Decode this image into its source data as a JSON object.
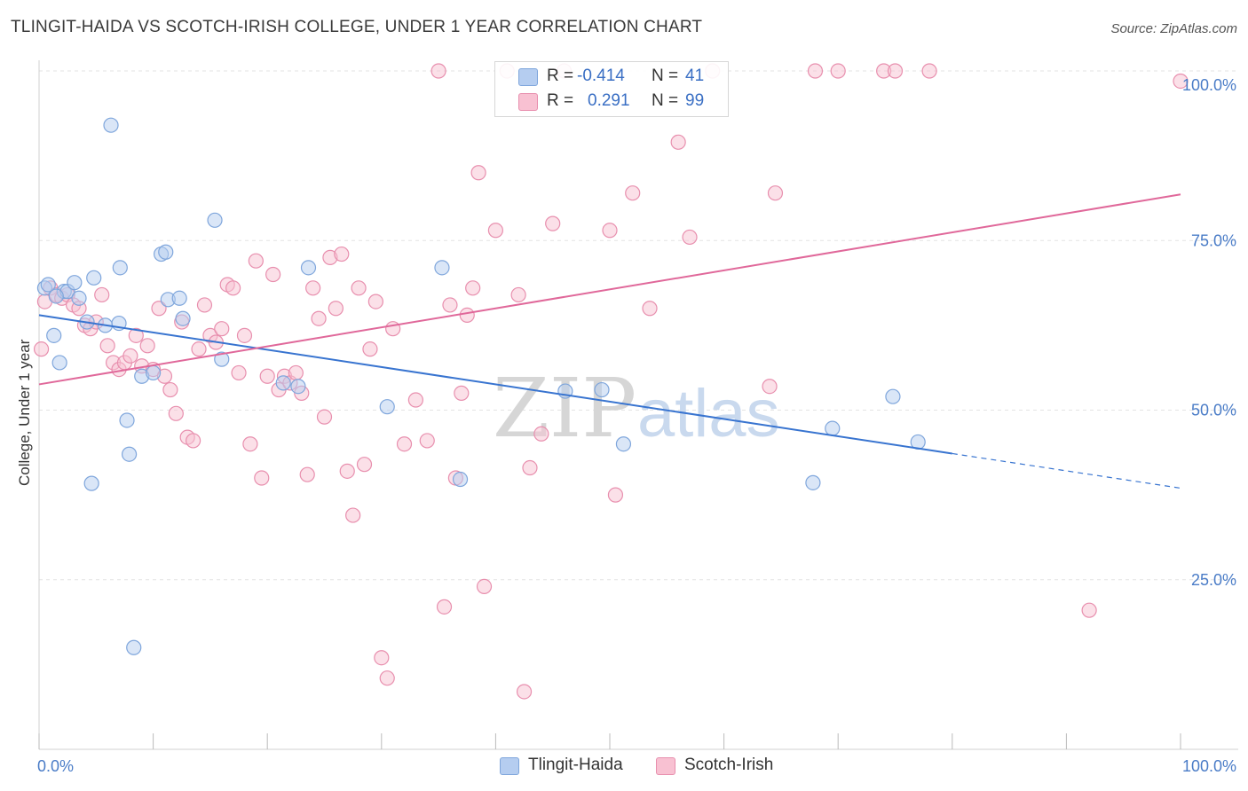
{
  "title": "TLINGIT-HAIDA VS SCOTCH-IRISH COLLEGE, UNDER 1 YEAR CORRELATION CHART",
  "source": "Source: ZipAtlas.com",
  "watermark": {
    "zip": "ZIP",
    "atlas": "atlas"
  },
  "legend": {
    "rows": [
      {
        "r_label": "R =",
        "r_value": "-0.414",
        "n_label": "N =",
        "n_value": "41"
      },
      {
        "r_label": "R =",
        "r_value": "0.291",
        "n_label": "N =",
        "n_value": "99"
      }
    ]
  },
  "bottom_legend": [
    "Tlingit-Haida",
    "Scotch-Irish"
  ],
  "colors": {
    "tlingit_fill": "#b5cdf0",
    "tlingit_stroke": "#7fa6dc",
    "tlingit_line": "#3874d0",
    "scotch_fill": "#f8c1d2",
    "scotch_stroke": "#e88fae",
    "scotch_line": "#e0689a",
    "tick_text": "#4a7cc7",
    "grid": "#e3e3e3"
  },
  "chart_data": {
    "type": "scatter",
    "title": "TLINGIT-HAIDA VS SCOTCH-IRISH COLLEGE, UNDER 1 YEAR CORRELATION CHART",
    "xlabel": "",
    "ylabel": "College, Under 1 year",
    "xlim": [
      0,
      100
    ],
    "ylim": [
      0,
      100
    ],
    "x_tick_labels": [
      "0.0%",
      "100.0%"
    ],
    "y_tick_labels": [
      "25.0%",
      "50.0%",
      "75.0%",
      "100.0%"
    ],
    "y_ticks": [
      25,
      50,
      75,
      100
    ],
    "grid": true,
    "legend_position": "bottom-center",
    "series": [
      {
        "name": "Tlingit-Haida",
        "R": -0.414,
        "N": 41,
        "trend": {
          "x0": 0,
          "y0": 64.0,
          "x1": 80,
          "y1": 43.6,
          "dash_to_x": 100,
          "dash_to_y": 38.5
        },
        "points": [
          [
            0.5,
            68.0
          ],
          [
            0.8,
            68.5
          ],
          [
            1.3,
            61.0
          ],
          [
            1.8,
            57.0
          ],
          [
            2.2,
            67.5
          ],
          [
            2.5,
            67.5
          ],
          [
            3.1,
            68.8
          ],
          [
            3.5,
            66.5
          ],
          [
            4.2,
            63.0
          ],
          [
            4.6,
            39.2
          ],
          [
            4.8,
            69.5
          ],
          [
            5.8,
            62.5
          ],
          [
            6.3,
            92.0
          ],
          [
            7.0,
            62.8
          ],
          [
            7.1,
            71.0
          ],
          [
            7.7,
            48.5
          ],
          [
            7.9,
            43.5
          ],
          [
            8.3,
            15.0
          ],
          [
            9.0,
            55.0
          ],
          [
            10.0,
            55.5
          ],
          [
            10.7,
            73.0
          ],
          [
            11.1,
            73.3
          ],
          [
            11.3,
            66.3
          ],
          [
            12.3,
            66.5
          ],
          [
            12.6,
            63.5
          ],
          [
            15.4,
            78.0
          ],
          [
            16.0,
            57.5
          ],
          [
            21.4,
            54.0
          ],
          [
            22.7,
            53.5
          ],
          [
            23.6,
            71.0
          ],
          [
            30.5,
            50.5
          ],
          [
            35.3,
            71.0
          ],
          [
            36.9,
            39.8
          ],
          [
            46.1,
            52.8
          ],
          [
            49.3,
            53.0
          ],
          [
            51.2,
            45.0
          ],
          [
            67.8,
            39.3
          ],
          [
            69.5,
            47.3
          ],
          [
            74.8,
            52.0
          ],
          [
            77.0,
            45.3
          ],
          [
            1.5,
            66.8
          ]
        ]
      },
      {
        "name": "Scotch-Irish",
        "R": 0.291,
        "N": 99,
        "trend": {
          "x0": 0,
          "y0": 53.8,
          "x1": 100,
          "y1": 81.8
        },
        "points": [
          [
            0.2,
            59.0
          ],
          [
            0.5,
            66.0
          ],
          [
            1.0,
            68.0
          ],
          [
            1.5,
            67.0
          ],
          [
            2.0,
            66.5
          ],
          [
            2.5,
            67.0
          ],
          [
            3.0,
            65.5
          ],
          [
            3.5,
            65.0
          ],
          [
            4.0,
            62.5
          ],
          [
            4.5,
            62.0
          ],
          [
            5.0,
            63.0
          ],
          [
            5.5,
            67.0
          ],
          [
            6.0,
            59.5
          ],
          [
            6.5,
            57.0
          ],
          [
            7.0,
            56.0
          ],
          [
            7.5,
            57.0
          ],
          [
            8.0,
            58.0
          ],
          [
            8.5,
            61.0
          ],
          [
            9.0,
            56.5
          ],
          [
            9.5,
            59.5
          ],
          [
            10.0,
            56.0
          ],
          [
            10.5,
            65.0
          ],
          [
            11.0,
            55.0
          ],
          [
            11.5,
            53.0
          ],
          [
            12.0,
            49.5
          ],
          [
            12.5,
            63.0
          ],
          [
            13.0,
            46.0
          ],
          [
            13.5,
            45.5
          ],
          [
            14.0,
            59.0
          ],
          [
            14.5,
            65.5
          ],
          [
            15.0,
            61.0
          ],
          [
            15.5,
            60.0
          ],
          [
            16.0,
            62.0
          ],
          [
            16.5,
            68.5
          ],
          [
            17.0,
            68.0
          ],
          [
            17.5,
            55.5
          ],
          [
            18.0,
            61.0
          ],
          [
            18.5,
            45.0
          ],
          [
            19.0,
            72.0
          ],
          [
            19.5,
            40.0
          ],
          [
            20.0,
            55.0
          ],
          [
            20.5,
            70.0
          ],
          [
            21.0,
            53.0
          ],
          [
            21.5,
            55.0
          ],
          [
            22.0,
            54.0
          ],
          [
            22.5,
            55.5
          ],
          [
            23.0,
            52.5
          ],
          [
            23.5,
            40.5
          ],
          [
            24.0,
            68.0
          ],
          [
            24.5,
            63.5
          ],
          [
            25.0,
            49.0
          ],
          [
            25.5,
            72.5
          ],
          [
            26.0,
            65.0
          ],
          [
            26.5,
            73.0
          ],
          [
            27.0,
            41.0
          ],
          [
            27.5,
            34.5
          ],
          [
            28.0,
            68.0
          ],
          [
            28.5,
            42.0
          ],
          [
            29.0,
            59.0
          ],
          [
            29.5,
            66.0
          ],
          [
            30.0,
            13.5
          ],
          [
            30.5,
            10.5
          ],
          [
            31.0,
            62.0
          ],
          [
            32.0,
            45.0
          ],
          [
            33.0,
            51.5
          ],
          [
            34.0,
            45.5
          ],
          [
            35.0,
            100.0
          ],
          [
            35.5,
            21.0
          ],
          [
            36.0,
            65.5
          ],
          [
            36.5,
            40.0
          ],
          [
            37.0,
            52.5
          ],
          [
            37.5,
            64.0
          ],
          [
            38.0,
            68.0
          ],
          [
            38.5,
            85.0
          ],
          [
            39.0,
            24.0
          ],
          [
            40.0,
            76.5
          ],
          [
            41.0,
            100.0
          ],
          [
            42.0,
            67.0
          ],
          [
            42.5,
            8.5
          ],
          [
            43.0,
            41.5
          ],
          [
            44.0,
            46.5
          ],
          [
            45.0,
            77.5
          ],
          [
            46.0,
            100.0
          ],
          [
            50.0,
            76.5
          ],
          [
            50.5,
            37.5
          ],
          [
            52.0,
            82.0
          ],
          [
            53.5,
            65.0
          ],
          [
            56.0,
            89.5
          ],
          [
            57.0,
            75.5
          ],
          [
            59.0,
            100.0
          ],
          [
            64.0,
            53.5
          ],
          [
            64.5,
            82.0
          ],
          [
            68.0,
            100.0
          ],
          [
            70.0,
            100.0
          ],
          [
            74.0,
            100.0
          ],
          [
            75.0,
            100.0
          ],
          [
            78.0,
            100.0
          ],
          [
            92.0,
            20.5
          ],
          [
            100.0,
            98.5
          ]
        ]
      }
    ]
  }
}
